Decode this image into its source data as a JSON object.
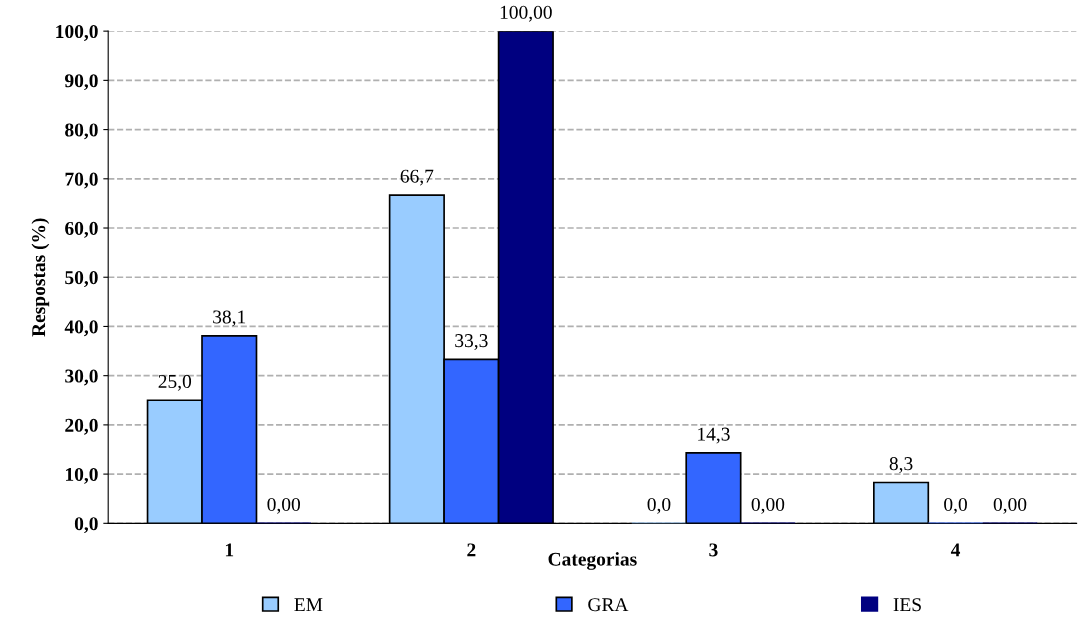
{
  "chart_data": {
    "type": "bar",
    "xlabel": "Categorias",
    "ylabel": "Respostas (%)",
    "categories": [
      "1",
      "2",
      "3",
      "4"
    ],
    "series": [
      {
        "name": "EM",
        "color": "#99ccff",
        "values": [
          25.0,
          66.7,
          0,
          8.3
        ],
        "value_labels": [
          "25,0",
          "66,7",
          "0,0",
          "8,3"
        ]
      },
      {
        "name": "GRA",
        "color": "#3366ff",
        "values": [
          38.1,
          33.3,
          14.3,
          0
        ],
        "value_labels": [
          "38,1",
          "33,3",
          "14,3",
          "0,0"
        ]
      },
      {
        "name": "IES",
        "color": "#000080",
        "values": [
          0,
          100,
          0,
          0
        ],
        "value_labels": [
          "0,00",
          "100,00",
          "0,00",
          "0,00"
        ]
      }
    ],
    "ylim": [
      0,
      100
    ],
    "yticks": [
      {
        "value": 0,
        "label": "0,0"
      },
      {
        "value": 10,
        "label": "10,0"
      },
      {
        "value": 20,
        "label": "20,0"
      },
      {
        "value": 30,
        "label": "30,0"
      },
      {
        "value": 40,
        "label": "40,0"
      },
      {
        "value": 50,
        "label": "50,0"
      },
      {
        "value": 60,
        "label": "60,0"
      },
      {
        "value": 70,
        "label": "70,0"
      },
      {
        "value": 80,
        "label": "80,0"
      },
      {
        "value": 90,
        "label": "90,0"
      },
      {
        "value": 100,
        "label": "100,0"
      }
    ],
    "grid": "y",
    "legend": "bottom"
  }
}
